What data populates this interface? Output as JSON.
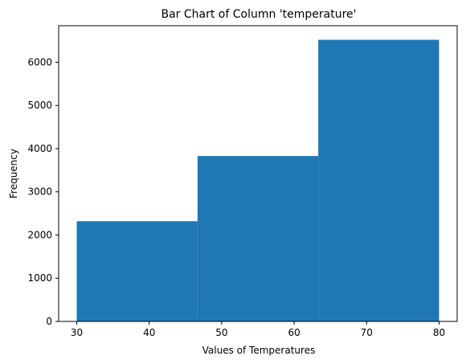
{
  "chart_data": {
    "type": "bar",
    "title": "Bar Chart of Column 'temperature'",
    "xlabel": "Values of Temperatures",
    "ylabel": "Frequency",
    "bins": [
      {
        "x0": 30,
        "x1": 46.67,
        "value": 2320
      },
      {
        "x0": 46.67,
        "x1": 63.33,
        "value": 3830
      },
      {
        "x0": 63.33,
        "x1": 80,
        "value": 6520
      }
    ],
    "xlim": [
      27.5,
      82.5
    ],
    "ylim": [
      0,
      6846
    ],
    "xticks": [
      30,
      40,
      50,
      60,
      70,
      80
    ],
    "yticks": [
      0,
      1000,
      2000,
      3000,
      4000,
      5000,
      6000
    ],
    "grid": false,
    "legend": "none",
    "bar_color": "#1f77b4"
  }
}
